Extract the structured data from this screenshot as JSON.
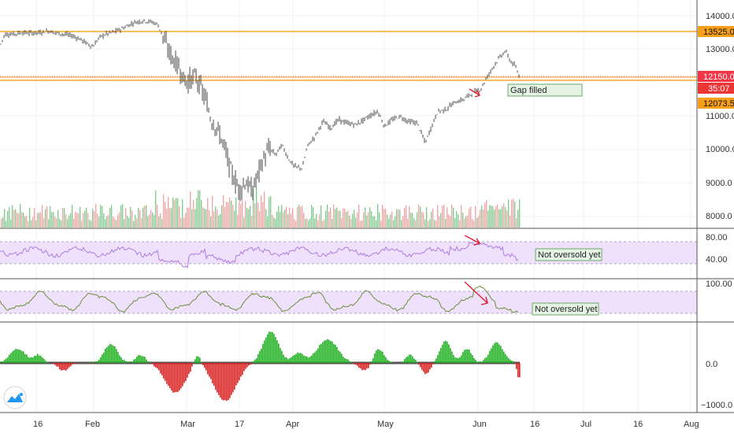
{
  "chart_data": [
    {
      "type": "candlestick",
      "panel": "price",
      "x_months": [
        "16",
        "Feb",
        "Mar",
        "17",
        "Apr",
        "May",
        "Jun",
        "16",
        "Jul",
        "16",
        "Aug"
      ],
      "y_ticks": [
        "14000.0",
        "13000.0",
        "11000.0",
        "10000.0",
        "9000.0",
        "8000.0"
      ],
      "ylim": [
        7600,
        14400
      ],
      "price_labels": {
        "resistance": "13525.0",
        "current": "12150.0",
        "countdown": "35:07",
        "support": "12073.5"
      },
      "levels": [
        13525.0,
        12150.0,
        12073.5
      ],
      "path": [
        [
          0,
          13100
        ],
        [
          6,
          13450
        ],
        [
          16,
          13450
        ],
        [
          28,
          13500
        ],
        [
          38,
          13480
        ],
        [
          52,
          13500
        ],
        [
          62,
          13550
        ],
        [
          72,
          13480
        ],
        [
          82,
          13450
        ],
        [
          92,
          13400
        ],
        [
          102,
          13300
        ],
        [
          112,
          13150
        ],
        [
          118,
          13080
        ],
        [
          126,
          13350
        ],
        [
          134,
          13450
        ],
        [
          145,
          13520
        ],
        [
          158,
          13650
        ],
        [
          170,
          13800
        ],
        [
          182,
          13850
        ],
        [
          192,
          13820
        ],
        [
          200,
          13750
        ],
        [
          206,
          13450
        ],
        [
          212,
          13050
        ],
        [
          220,
          12700
        ],
        [
          228,
          12450
        ],
        [
          234,
          12050
        ],
        [
          240,
          12050
        ],
        [
          248,
          12200
        ],
        [
          254,
          11900
        ],
        [
          262,
          11450
        ],
        [
          268,
          10900
        ],
        [
          274,
          10700
        ],
        [
          280,
          10400
        ],
        [
          286,
          10000
        ],
        [
          292,
          9450
        ],
        [
          298,
          9100
        ],
        [
          304,
          8800
        ],
        [
          312,
          9050
        ],
        [
          320,
          8750
        ],
        [
          328,
          9300
        ],
        [
          334,
          9700
        ],
        [
          342,
          10050
        ],
        [
          350,
          9850
        ],
        [
          358,
          10150
        ],
        [
          366,
          9750
        ],
        [
          374,
          9500
        ],
        [
          384,
          9450
        ],
        [
          390,
          10100
        ],
        [
          400,
          10400
        ],
        [
          410,
          10850
        ],
        [
          420,
          10650
        ],
        [
          430,
          10900
        ],
        [
          440,
          10800
        ],
        [
          452,
          10750
        ],
        [
          462,
          10900
        ],
        [
          472,
          11050
        ],
        [
          480,
          11150
        ],
        [
          488,
          10700
        ],
        [
          498,
          10900
        ],
        [
          508,
          11000
        ],
        [
          518,
          10850
        ],
        [
          530,
          10800
        ],
        [
          540,
          10200
        ],
        [
          548,
          10700
        ],
        [
          556,
          11150
        ],
        [
          566,
          11200
        ],
        [
          576,
          11400
        ],
        [
          588,
          11500
        ],
        [
          600,
          11700
        ],
        [
          610,
          11800
        ],
        [
          618,
          12150
        ],
        [
          628,
          12550
        ],
        [
          636,
          12800
        ],
        [
          642,
          12950
        ],
        [
          648,
          12650
        ],
        [
          654,
          12500
        ],
        [
          660,
          12150
        ]
      ],
      "annotations": [
        "Gap filled"
      ]
    },
    {
      "type": "line",
      "panel": "rsi",
      "y_ticks": [
        "80.00",
        "40.00"
      ],
      "ylim": [
        0,
        100
      ],
      "band": [
        30,
        70
      ],
      "annotations": [
        "Not oversold yet"
      ]
    },
    {
      "type": "line",
      "panel": "stochastic",
      "y_ticks": [
        "100.00"
      ],
      "ylim": [
        0,
        100
      ],
      "band": [
        20,
        80
      ],
      "annotations": [
        "Not oversold yet"
      ]
    },
    {
      "type": "histogram",
      "panel": "oscillator",
      "y_ticks": [
        "0.0",
        "−1000.0"
      ],
      "ylim": [
        -1100,
        900
      ]
    }
  ],
  "colors": {
    "level_line": "#f5a623",
    "level_label": "#f79e1b",
    "current_label": "#f23645",
    "countdown_label": "#ec3535",
    "candles": "#4a4a4a",
    "volume_up": "#7fc98a",
    "volume_down": "#f4a1a1",
    "rsi": "#b07ce0",
    "band_fill": "#efe1fb",
    "stoch": "#6b8e3a",
    "osc_up": "#1eb01e",
    "osc_down": "#de1e1e",
    "arrow": "#e0202e",
    "note_fill": "#e4f3e4"
  },
  "icons": [
    "tradingview-logo-icon"
  ]
}
